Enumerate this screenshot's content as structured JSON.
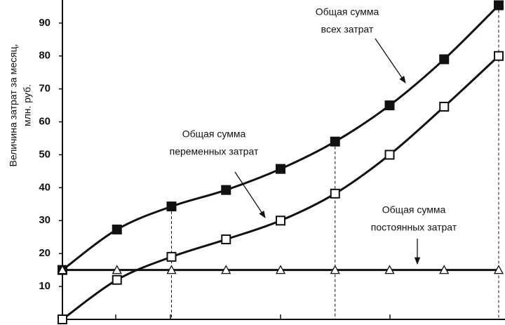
{
  "chart_data": {
    "type": "line",
    "ylabel": [
      "Величина затрат за месяц,",
      "млн. руб."
    ],
    "x": [
      0,
      1,
      2,
      3,
      4,
      5,
      6,
      7,
      8
    ],
    "xlim": [
      0,
      8
    ],
    "ylim": [
      0,
      97
    ],
    "yticks": [
      10,
      20,
      30,
      40,
      50,
      60,
      70,
      80,
      90
    ],
    "guide_x": [
      2,
      5,
      8
    ],
    "series": [
      {
        "color": "#111111",
        "marker": "square-filled",
        "values": [
          15,
          27.3,
          34.3,
          39.3,
          45.7,
          54,
          65,
          79,
          95.4
        ]
      },
      {
        "color": "#111111",
        "marker": "square-open",
        "values": [
          0,
          12,
          19,
          24.3,
          30,
          38.2,
          50,
          64.6,
          80
        ]
      },
      {
        "color": "#111111",
        "marker": "triangle-open",
        "values": [
          15,
          15,
          15,
          15,
          15,
          15,
          15,
          15,
          15
        ]
      }
    ],
    "annotations": [
      [
        "Общая сумма",
        "всех затрат"
      ],
      [
        "Общая сумма",
        "переменных затрат"
      ],
      [
        "Общая сумма",
        "постоянных затрат"
      ]
    ]
  }
}
